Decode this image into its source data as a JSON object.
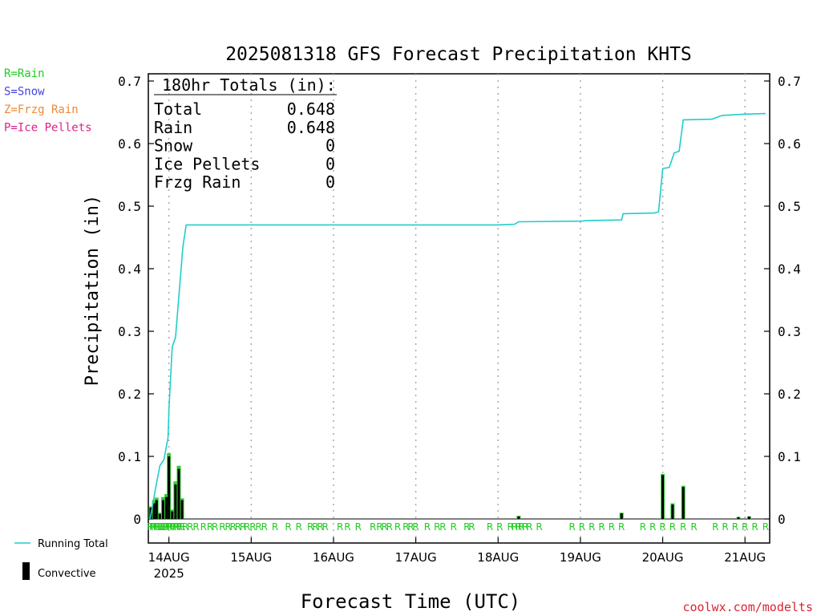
{
  "chart_data": {
    "type": "bar",
    "title": "2025081318 GFS Forecast Precipitation KHTS",
    "ylabel": "Precipitation (in)",
    "xlabel": "Forecast Time (UTC)",
    "ylim": [
      0,
      0.7
    ],
    "yticks": [
      "0",
      "0.1",
      "0.2",
      "0.3",
      "0.4",
      "0.5",
      "0.6",
      "0.7"
    ],
    "x_domain_days": [
      -0.25,
      7.3
    ],
    "x_ticks": [
      {
        "day": 0,
        "label": "14AUG",
        "sub": "2025"
      },
      {
        "day": 1,
        "label": "15AUG",
        "sub": ""
      },
      {
        "day": 2,
        "label": "16AUG",
        "sub": ""
      },
      {
        "day": 3,
        "label": "17AUG",
        "sub": ""
      },
      {
        "day": 4,
        "label": "18AUG",
        "sub": ""
      },
      {
        "day": 5,
        "label": "19AUG",
        "sub": ""
      },
      {
        "day": 6,
        "label": "20AUG",
        "sub": ""
      },
      {
        "day": 7,
        "label": "21AUG",
        "sub": ""
      }
    ],
    "grid": true,
    "legend_left": [
      {
        "text": "R=Rain",
        "color": "#22cc22"
      },
      {
        "text": "S=Snow",
        "color": "#4444dd"
      },
      {
        "text": "Z=Frzg Rain",
        "color": "#ee8833"
      },
      {
        "text": "P=Ice Pellets",
        "color": "#dd2288"
      }
    ],
    "legend_bottom": [
      {
        "text": "Running Total",
        "color": "#22cccc"
      },
      {
        "text": "Convective",
        "color": "#000000"
      }
    ],
    "totals": {
      "heading": "180hr Totals (in):",
      "rows": [
        {
          "label": "Total",
          "value": "0.648"
        },
        {
          "label": "Rain",
          "value": "0.648"
        },
        {
          "label": "Snow",
          "value": "0"
        },
        {
          "label": "Ice Pellets",
          "value": "0"
        },
        {
          "label": "Frzg Rain",
          "value": "0"
        }
      ]
    },
    "series": [
      {
        "name": "Running Total",
        "points": [
          [
            -0.23,
            0.0
          ],
          [
            -0.2,
            0.02
          ],
          [
            -0.16,
            0.05
          ],
          [
            -0.11,
            0.085
          ],
          [
            -0.06,
            0.095
          ],
          [
            -0.01,
            0.13
          ],
          [
            0.0,
            0.175
          ],
          [
            0.04,
            0.275
          ],
          [
            0.08,
            0.29
          ],
          [
            0.13,
            0.37
          ],
          [
            0.17,
            0.435
          ],
          [
            0.21,
            0.47
          ],
          [
            4.0,
            0.47
          ],
          [
            4.2,
            0.471
          ],
          [
            4.25,
            0.475
          ],
          [
            5.0,
            0.476
          ],
          [
            5.1,
            0.477
          ],
          [
            5.5,
            0.478
          ],
          [
            5.52,
            0.488
          ],
          [
            5.9,
            0.489
          ],
          [
            5.95,
            0.491
          ],
          [
            6.0,
            0.56
          ],
          [
            6.08,
            0.562
          ],
          [
            6.14,
            0.585
          ],
          [
            6.2,
            0.588
          ],
          [
            6.25,
            0.638
          ],
          [
            6.6,
            0.639
          ],
          [
            6.72,
            0.645
          ],
          [
            7.0,
            0.647
          ],
          [
            7.25,
            0.648
          ]
        ]
      },
      {
        "name": "Total precip",
        "bars": [
          [
            -0.22,
            0.02
          ],
          [
            -0.18,
            0.03
          ],
          [
            -0.15,
            0.034
          ],
          [
            -0.11,
            0.01
          ],
          [
            -0.07,
            0.035
          ],
          [
            -0.03,
            0.04
          ],
          [
            0.0,
            0.105
          ],
          [
            0.04,
            0.015
          ],
          [
            0.08,
            0.06
          ],
          [
            0.12,
            0.085
          ],
          [
            0.16,
            0.033
          ],
          [
            4.25,
            0.005
          ],
          [
            5.5,
            0.01
          ],
          [
            6.0,
            0.072
          ],
          [
            6.12,
            0.025
          ],
          [
            6.25,
            0.053
          ],
          [
            6.92,
            0.003
          ],
          [
            7.05,
            0.004
          ]
        ]
      },
      {
        "name": "Convective",
        "bars": [
          [
            -0.22,
            0.018
          ],
          [
            -0.18,
            0.025
          ],
          [
            -0.15,
            0.03
          ],
          [
            -0.11,
            0.008
          ],
          [
            -0.07,
            0.03
          ],
          [
            -0.03,
            0.035
          ],
          [
            0.0,
            0.1
          ],
          [
            0.04,
            0.012
          ],
          [
            0.08,
            0.055
          ],
          [
            0.12,
            0.08
          ],
          [
            0.16,
            0.03
          ],
          [
            4.25,
            0.004
          ],
          [
            5.5,
            0.009
          ],
          [
            6.0,
            0.07
          ],
          [
            6.12,
            0.023
          ],
          [
            6.25,
            0.051
          ],
          [
            6.92,
            0.003
          ],
          [
            7.05,
            0.004
          ]
        ]
      }
    ],
    "precip_type_marks": {
      "letter": "R",
      "days": [
        -0.23,
        -0.2,
        -0.18,
        -0.15,
        -0.13,
        -0.11,
        -0.09,
        -0.07,
        -0.05,
        -0.03,
        0.0,
        0.02,
        0.05,
        0.08,
        0.1,
        0.13,
        0.16,
        0.2,
        0.26,
        0.33,
        0.42,
        0.5,
        0.56,
        0.65,
        0.72,
        0.78,
        0.84,
        0.9,
        0.95,
        1.02,
        1.09,
        1.16,
        1.29,
        1.45,
        1.58,
        1.72,
        1.78,
        1.84,
        1.9,
        2.08,
        2.17,
        2.3,
        2.48,
        2.56,
        2.62,
        2.68,
        2.78,
        2.88,
        2.94,
        3.0,
        3.14,
        3.26,
        3.33,
        3.46,
        3.62,
        3.68,
        3.9,
        4.02,
        4.15,
        4.2,
        4.25,
        4.28,
        4.33,
        4.38,
        4.5,
        4.9,
        5.02,
        5.14,
        5.26,
        5.38,
        5.5,
        5.76,
        5.88,
        6.0,
        6.12,
        6.25,
        6.38,
        6.64,
        6.76,
        6.88,
        7.0,
        7.12,
        7.25
      ]
    },
    "watermark": "coolwx.com/modelts"
  }
}
